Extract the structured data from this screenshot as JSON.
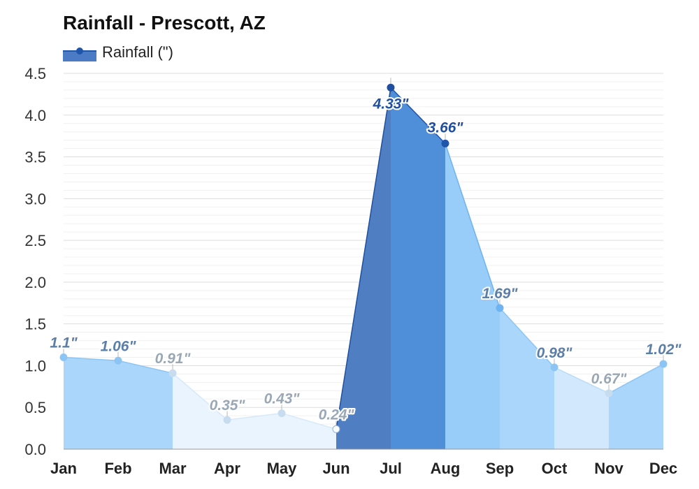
{
  "chart_data": {
    "type": "area",
    "title": "Rainfall - Prescott, AZ",
    "legend": {
      "label": "Rainfall (\")",
      "placement": "top-left"
    },
    "categories": [
      "Jan",
      "Feb",
      "Mar",
      "Apr",
      "May",
      "Jun",
      "Jul",
      "Aug",
      "Sep",
      "Oct",
      "Nov",
      "Dec"
    ],
    "series": [
      {
        "name": "Rainfall (\")",
        "values": [
          1.1,
          1.06,
          0.91,
          0.35,
          0.43,
          0.24,
          4.33,
          3.66,
          1.69,
          0.98,
          0.67,
          1.02
        ],
        "labels": [
          "1.1\"",
          "1.06\"",
          "0.91\"",
          "0.35\"",
          "0.43\"",
          "0.24\"",
          "4.33\"",
          "3.66\"",
          "1.69\"",
          "0.98\"",
          "0.67\"",
          "1.02\""
        ]
      }
    ],
    "yticks": [
      "0.0",
      "0.5",
      "1.0",
      "1.5",
      "2.0",
      "2.5",
      "3.0",
      "3.5",
      "4.0",
      "4.5"
    ],
    "ylim": [
      0,
      4.5
    ],
    "xlabel": "",
    "ylabel": "",
    "grid": true,
    "colors": {
      "legend_swatch": "#4a7bc4",
      "legend_line": "#1f55aa",
      "grid": "#e6e6e6",
      "axis": "#999999"
    },
    "segment_styles": [
      {
        "fill": "#aad6fb",
        "stroke": "#8cc5f3",
        "point": "#8cc5f3",
        "label": "#5b7fa8"
      },
      {
        "fill": "#aad6fb",
        "stroke": "#8cc5f3",
        "point": "#8cc5f3",
        "label": "#5b7fa8"
      },
      {
        "fill": "#eaf4fe",
        "stroke": "#d6e9fb",
        "point": "#c8dcef",
        "label": "#9aa8b6"
      },
      {
        "fill": "#eaf4fe",
        "stroke": "#d6e9fb",
        "point": "#c8dcef",
        "label": "#9aa8b6"
      },
      {
        "fill": "#eaf4fe",
        "stroke": "#d6e9fb",
        "point": "#c8dcef",
        "label": "#9aa8b6"
      },
      {
        "fill": "#4f7fc2",
        "stroke": "#1f4f9e",
        "point": "#ffffff",
        "label": "#9aa8b6"
      },
      {
        "fill": "#4f8ed8",
        "stroke": "#1f55aa",
        "point": "#1f4f9e",
        "label": "#1f4f9e"
      },
      {
        "fill": "#98ccf9",
        "stroke": "#6fb3f0",
        "point": "#1f55aa",
        "label": "#1f4f9e"
      },
      {
        "fill": "#aad6fb",
        "stroke": "#8cc5f3",
        "point": "#6fb3f0",
        "label": "#5b7fa8"
      },
      {
        "fill": "#d2e8fc",
        "stroke": "#bcdcf7",
        "point": "#8cc5f3",
        "label": "#5b7fa8"
      },
      {
        "fill": "#aad6fb",
        "stroke": "#8cc5f3",
        "point": "#c8dcef",
        "label": "#9aa8b6"
      },
      {
        "fill": "#aad6fb",
        "stroke": "#8cc5f3",
        "point": "#8cc5f3",
        "label": "#5b7fa8"
      }
    ]
  }
}
